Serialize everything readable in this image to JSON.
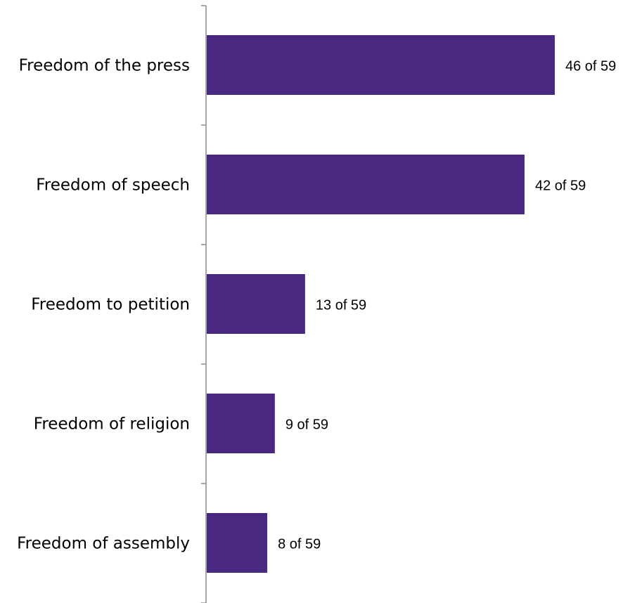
{
  "chart_data": {
    "type": "bar",
    "orientation": "horizontal",
    "categories": [
      "Freedom of the press",
      "Freedom of speech",
      "Freedom to petition",
      "Freedom of religion",
      "Freedom of assembly"
    ],
    "values": [
      46,
      42,
      13,
      9,
      8
    ],
    "value_labels": [
      "46 of 59",
      "42 of 59",
      "13 of 59",
      "9 of 59",
      "8 of 59"
    ],
    "total": 59,
    "title": "",
    "xlabel": "",
    "ylabel": "",
    "xlim": [
      0,
      50
    ],
    "grid": false,
    "legend": "none",
    "bar_color": "#482880"
  }
}
